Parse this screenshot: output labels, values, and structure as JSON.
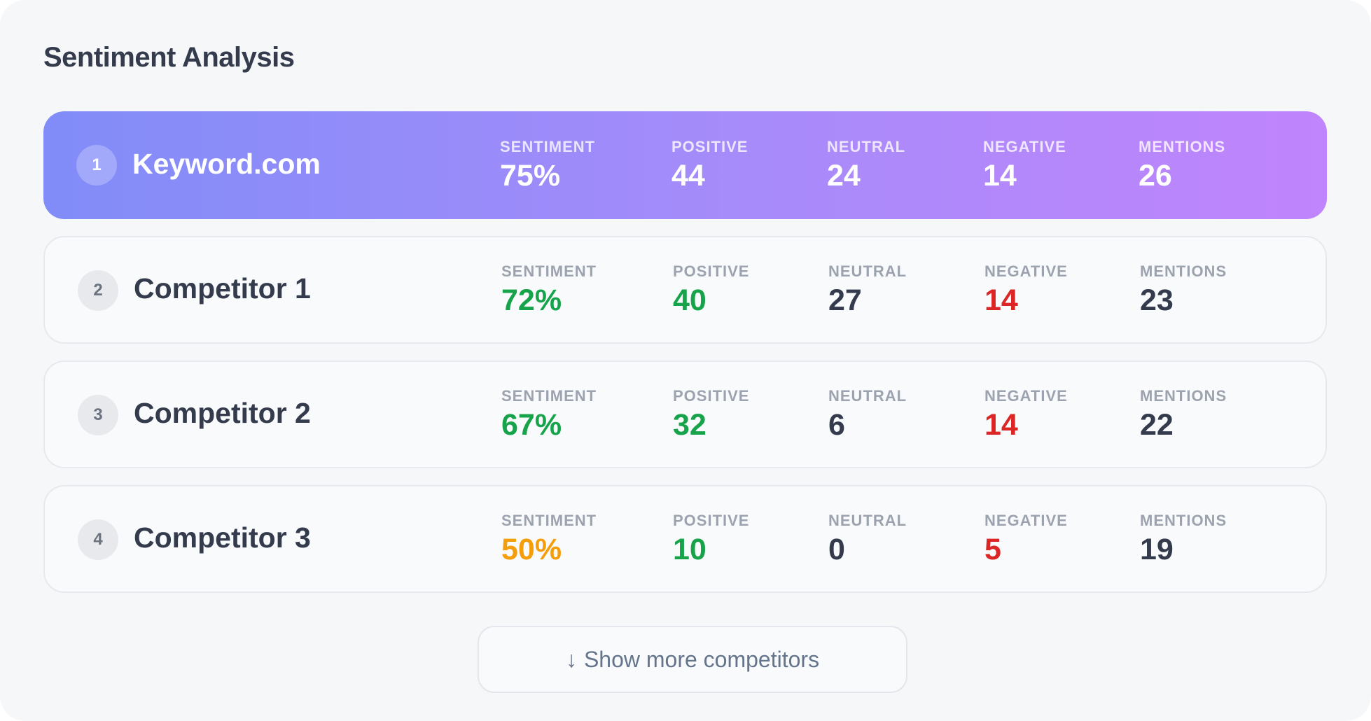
{
  "title": "Sentiment Analysis",
  "colors": {
    "positive": "#16a34a",
    "negative": "#dc2626",
    "warning": "#f59e0b",
    "neutral": "#343b4c",
    "highlight_gradient": [
      "#818cf8",
      "#c084fc"
    ]
  },
  "labels": {
    "sentiment": "SENTIMENT",
    "positive": "POSITIVE",
    "neutral": "NEUTRAL",
    "negative": "NEGATIVE",
    "mentions": "MENTIONS"
  },
  "rows": [
    {
      "rank": "1",
      "name": "Keyword.com",
      "highlighted": true,
      "sentiment": "75%",
      "positive": "44",
      "neutral": "24",
      "negative": "14",
      "mentions": "26",
      "sentiment_color": "#ffffff"
    },
    {
      "rank": "2",
      "name": "Competitor 1",
      "sentiment": "72%",
      "positive": "40",
      "neutral": "27",
      "negative": "14",
      "mentions": "23",
      "sentiment_color": "#16a34a"
    },
    {
      "rank": "3",
      "name": "Competitor 2",
      "sentiment": "67%",
      "positive": "32",
      "neutral": "6",
      "negative": "14",
      "mentions": "22",
      "sentiment_color": "#16a34a"
    },
    {
      "rank": "4",
      "name": "Competitor 3",
      "sentiment": "50%",
      "positive": "10",
      "neutral": "0",
      "negative": "5",
      "mentions": "19",
      "sentiment_color": "#f59e0b"
    }
  ],
  "show_more": {
    "icon": "arrow-down-icon",
    "arrow": "↓",
    "label": "Show more competitors"
  }
}
